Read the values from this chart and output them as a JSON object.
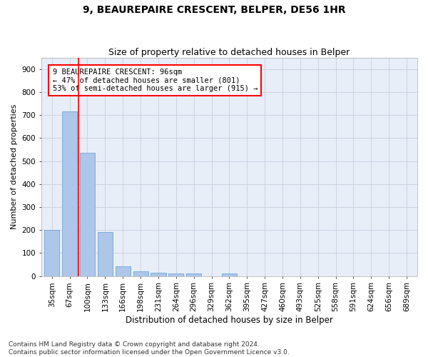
{
  "title": "9, BEAUREPAIRE CRESCENT, BELPER, DE56 1HR",
  "subtitle": "Size of property relative to detached houses in Belper",
  "xlabel": "Distribution of detached houses by size in Belper",
  "ylabel": "Number of detached properties",
  "categories": [
    "35sqm",
    "67sqm",
    "100sqm",
    "133sqm",
    "166sqm",
    "198sqm",
    "231sqm",
    "264sqm",
    "296sqm",
    "329sqm",
    "362sqm",
    "395sqm",
    "427sqm",
    "460sqm",
    "493sqm",
    "525sqm",
    "558sqm",
    "591sqm",
    "624sqm",
    "656sqm",
    "689sqm"
  ],
  "values": [
    200,
    715,
    535,
    193,
    42,
    20,
    14,
    12,
    10,
    0,
    10,
    0,
    0,
    0,
    0,
    0,
    0,
    0,
    0,
    0,
    0
  ],
  "bar_color": "#aec6e8",
  "bar_edge_color": "#5a9fd4",
  "vline_x": 1.5,
  "vline_color": "red",
  "annotation_text": "9 BEAUREPAIRE CRESCENT: 96sqm\n← 47% of detached houses are smaller (801)\n53% of semi-detached houses are larger (915) →",
  "annotation_box_color": "white",
  "annotation_box_edge_color": "red",
  "ylim": [
    0,
    950
  ],
  "yticks": [
    0,
    100,
    200,
    300,
    400,
    500,
    600,
    700,
    800,
    900
  ],
  "background_color": "#e8eef8",
  "grid_color": "#c8d0e0",
  "footer_line1": "Contains HM Land Registry data © Crown copyright and database right 2024.",
  "footer_line2": "Contains public sector information licensed under the Open Government Licence v3.0.",
  "title_fontsize": 10,
  "subtitle_fontsize": 9,
  "xlabel_fontsize": 8.5,
  "ylabel_fontsize": 8,
  "tick_fontsize": 7.5,
  "footer_fontsize": 6.5
}
